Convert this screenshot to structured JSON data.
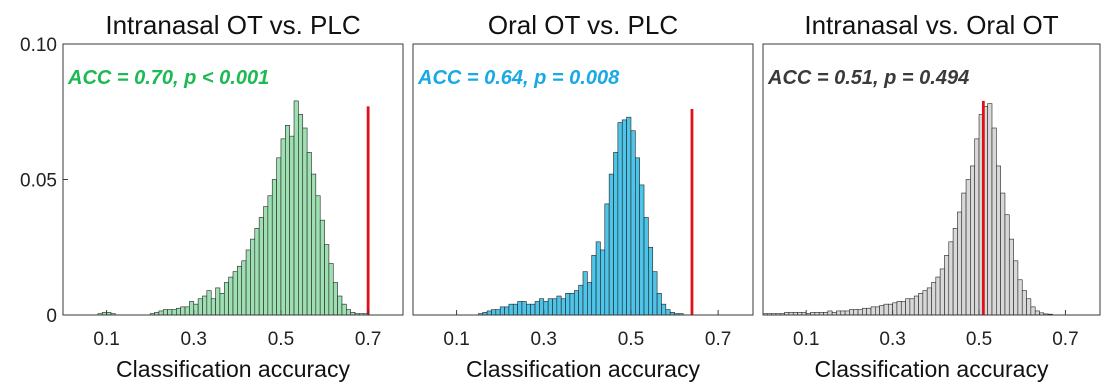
{
  "chart_data": [
    {
      "type": "bar",
      "title": "Intranasal OT vs. PLC",
      "xlabel": "Classification accuracy",
      "ylabel": "",
      "xlim": [
        0,
        0.78
      ],
      "ylim": [
        0,
        0.1
      ],
      "xticks": [
        "0.1",
        "0.3",
        "0.5",
        "0.7"
      ],
      "yticks": [
        "0",
        "0.05",
        "0.10"
      ],
      "annotation": "ACC = 0.70, p < 0.001",
      "observed_acc": 0.7,
      "observed_line_height": 0.077,
      "color": "#9fe0b2",
      "annotation_color": "#1db954",
      "line_color": "#e0101a",
      "histogram": {
        "bin_start": 0.08,
        "bin_width": 0.01,
        "values": [
          0.0005,
          0.001,
          0.001,
          0.0005,
          0,
          0,
          0,
          0,
          0,
          0,
          0,
          0,
          0.0005,
          0.001,
          0.0015,
          0.002,
          0.002,
          0.002,
          0.0025,
          0.003,
          0.003,
          0.005,
          0.004,
          0.006,
          0.007,
          0.009,
          0.006,
          0.01,
          0.008,
          0.012,
          0.014,
          0.016,
          0.018,
          0.02,
          0.024,
          0.028,
          0.032,
          0.036,
          0.04,
          0.044,
          0.05,
          0.058,
          0.065,
          0.07,
          0.066,
          0.079,
          0.074,
          0.069,
          0.06,
          0.052,
          0.044,
          0.035,
          0.026,
          0.019,
          0.012,
          0.007,
          0.004,
          0.002,
          0.001,
          0.0005,
          0.0005,
          0.0005
        ]
      }
    },
    {
      "type": "bar",
      "title": "Oral OT vs. PLC",
      "xlabel": "Classification accuracy",
      "ylabel": "",
      "xlim": [
        0,
        0.78
      ],
      "ylim": [
        0,
        0.1
      ],
      "xticks": [
        "0.1",
        "0.3",
        "0.5",
        "0.7"
      ],
      "yticks": [],
      "annotation": "ACC = 0.64, p = 0.008",
      "observed_acc": 0.64,
      "observed_line_height": 0.076,
      "color": "#4dc4e8",
      "annotation_color": "#19a9e6",
      "line_color": "#e0101a",
      "histogram": {
        "bin_start": 0.15,
        "bin_width": 0.01,
        "values": [
          0.0005,
          0.001,
          0.0015,
          0.002,
          0.002,
          0.003,
          0.003,
          0.004,
          0.004,
          0.005,
          0.005,
          0.004,
          0.004,
          0.005,
          0.006,
          0.005,
          0.006,
          0.006,
          0.007,
          0.006,
          0.008,
          0.008,
          0.009,
          0.011,
          0.016,
          0.012,
          0.022,
          0.027,
          0.024,
          0.041,
          0.052,
          0.06,
          0.071,
          0.072,
          0.073,
          0.068,
          0.058,
          0.048,
          0.036,
          0.025,
          0.016,
          0.008,
          0.004,
          0.002,
          0.001,
          0.0005,
          0.0005
        ]
      }
    },
    {
      "type": "bar",
      "title": "Intranasal vs. Oral OT",
      "xlabel": "Classification accuracy",
      "ylabel": "",
      "xlim": [
        0,
        0.78
      ],
      "ylim": [
        0,
        0.1
      ],
      "xticks": [
        "0.1",
        "0.3",
        "0.5",
        "0.7"
      ],
      "yticks": [],
      "annotation": "ACC = 0.51, p = 0.494",
      "observed_acc": 0.51,
      "observed_line_height": 0.079,
      "color": "#d8d8d8",
      "annotation_color": "#3a3a3a",
      "line_color": "#e0101a",
      "histogram": {
        "bin_start": 0.0,
        "bin_width": 0.01,
        "values": [
          0.0005,
          0.0005,
          0.0005,
          0.0005,
          0.0005,
          0.001,
          0.001,
          0.001,
          0.001,
          0.001,
          0.0005,
          0.001,
          0.001,
          0.001,
          0.001,
          0.0015,
          0.001,
          0.0015,
          0.0015,
          0.0015,
          0.002,
          0.002,
          0.002,
          0.0025,
          0.0025,
          0.003,
          0.003,
          0.0035,
          0.004,
          0.004,
          0.0045,
          0.005,
          0.005,
          0.006,
          0.006,
          0.007,
          0.008,
          0.009,
          0.01,
          0.012,
          0.014,
          0.017,
          0.022,
          0.027,
          0.032,
          0.038,
          0.045,
          0.05,
          0.055,
          0.065,
          0.074,
          0.077,
          0.078,
          0.069,
          0.055,
          0.045,
          0.037,
          0.028,
          0.02,
          0.013,
          0.009,
          0.006,
          0.003,
          0.0015,
          0.0008,
          0.0004,
          0.0003
        ]
      }
    }
  ]
}
